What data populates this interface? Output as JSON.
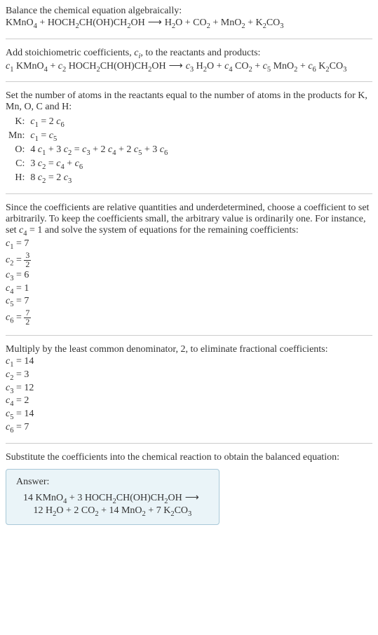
{
  "section1": {
    "title": "Balance the chemical equation algebraically:",
    "equation_lhs": "KMnO",
    "equation": "KMnO₄ + HOCH₂CH(OH)CH₂OH ⟶ H₂O + CO₂ + MnO₂ + K₂CO₃"
  },
  "section2": {
    "title_pre": "Add stoichiometric coefficients, ",
    "title_var": "c",
    "title_sub": "i",
    "title_post": ", to the reactants and products:",
    "equation": "c₁ KMnO₄ + c₂ HOCH₂CH(OH)CH₂OH ⟶ c₃ H₂O + c₄ CO₂ + c₅ MnO₂ + c₆ K₂CO₃"
  },
  "section3": {
    "title": "Set the number of atoms in the reactants equal to the number of atoms in the products for K, Mn, O, C and H:",
    "rows": [
      {
        "atom": "K:",
        "eq": "c₁ = 2 c₆"
      },
      {
        "atom": "Mn:",
        "eq": "c₁ = c₅"
      },
      {
        "atom": "O:",
        "eq": "4 c₁ + 3 c₂ = c₃ + 2 c₄ + 2 c₅ + 3 c₆"
      },
      {
        "atom": "C:",
        "eq": "3 c₂ = c₄ + c₆"
      },
      {
        "atom": "H:",
        "eq": "8 c₂ = 2 c₃"
      }
    ]
  },
  "section4": {
    "title": "Since the coefficients are relative quantities and underdetermined, choose a coefficient to set arbitrarily. To keep the coefficients small, the arbitrary value is ordinarily one. For instance, set c₄ = 1 and solve the system of equations for the remaining coefficients:",
    "lines": [
      "c₁ = 7",
      "c₂ = 3/2",
      "c₃ = 6",
      "c₄ = 1",
      "c₅ = 7",
      "c₆ = 7/2"
    ]
  },
  "section5": {
    "title": "Multiply by the least common denominator, 2, to eliminate fractional coefficients:",
    "lines": [
      "c₁ = 14",
      "c₂ = 3",
      "c₃ = 12",
      "c₄ = 2",
      "c₅ = 14",
      "c₆ = 7"
    ]
  },
  "section6": {
    "title": "Substitute the coefficients into the chemical reaction to obtain the balanced equation:"
  },
  "answer": {
    "label": "Answer:",
    "line1": "14 KMnO₄ + 3 HOCH₂CH(OH)CH₂OH ⟶",
    "line2": "12 H₂O + 2 CO₂ + 14 MnO₂ + 7 K₂CO₃"
  },
  "colors": {
    "text": "#333333",
    "rule": "#cccccc",
    "answer_bg": "#eaf4f8",
    "answer_border": "#a8c8d8"
  },
  "fontsize": 14
}
